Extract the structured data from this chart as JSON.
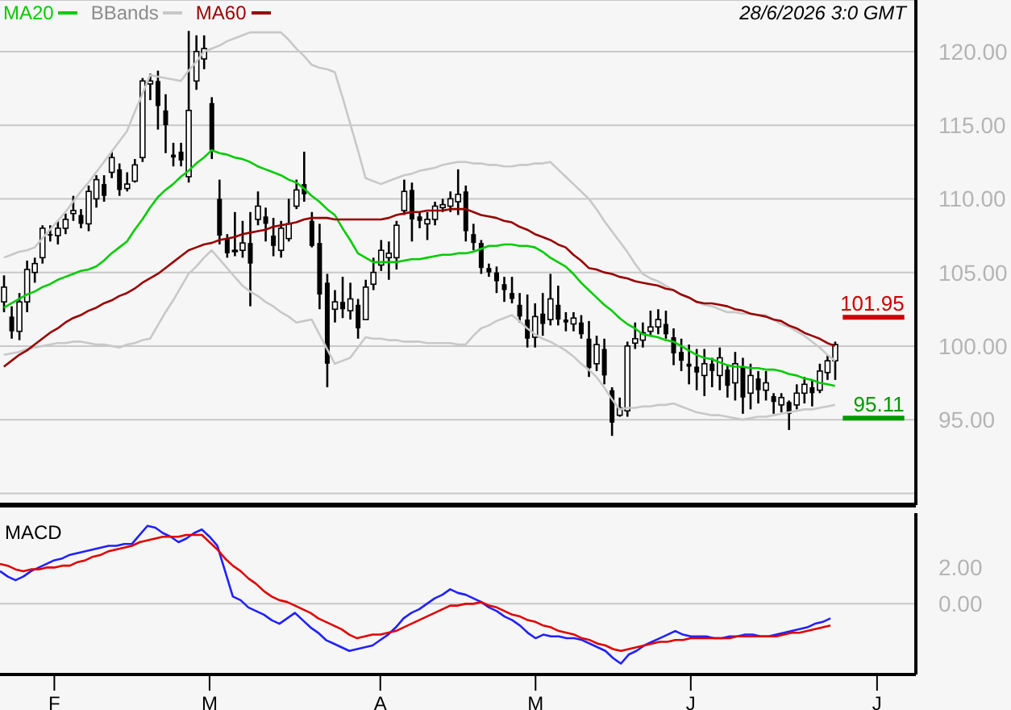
{
  "chart_data": [
    {
      "type": "candlestick",
      "annotations": [
        "28/6/2026 3:0 GMT"
      ],
      "categories": [
        null,
        null,
        null,
        null,
        null,
        null,
        null,
        null,
        null,
        null,
        null,
        null,
        null,
        null,
        null,
        null,
        null,
        null,
        null,
        null,
        null,
        null,
        null,
        null,
        null,
        null,
        null,
        null,
        null,
        null,
        null,
        null,
        null,
        null,
        null,
        null,
        null,
        null,
        null,
        null,
        null,
        null,
        null,
        null,
        null,
        null,
        null,
        null,
        null,
        null,
        null,
        null,
        null,
        null,
        null,
        null,
        null,
        null,
        null,
        null,
        null,
        null,
        null,
        null,
        null,
        null,
        null,
        null,
        null,
        null,
        null,
        null,
        null,
        null,
        null,
        null,
        null,
        null,
        null,
        null,
        null,
        null,
        null,
        null,
        null,
        null,
        null,
        null,
        null,
        null,
        null,
        null,
        null,
        null,
        null,
        null,
        null,
        null,
        null,
        null,
        null,
        null,
        null,
        null,
        null,
        null,
        null,
        null,
        null,
        null,
        null,
        null,
        null,
        null,
        null,
        null,
        null,
        null,
        null
      ],
      "ohlc": [
        [
          103.0,
          104.8,
          102.3,
          104.0
        ],
        [
          102.0,
          102.7,
          100.5,
          101.0
        ],
        [
          101.0,
          103.6,
          100.4,
          103.0
        ],
        [
          103.0,
          105.8,
          102.3,
          105.2
        ],
        [
          105.0,
          106.0,
          104.3,
          105.6
        ],
        [
          106.0,
          108.2,
          105.6,
          108.0
        ],
        [
          107.6,
          108.2,
          107.1,
          107.5
        ],
        [
          107.5,
          108.5,
          106.9,
          108.0
        ],
        [
          108.0,
          109.0,
          107.6,
          108.6
        ],
        [
          109.0,
          110.2,
          108.5,
          109.2
        ],
        [
          108.9,
          109.3,
          108.0,
          108.3
        ],
        [
          108.3,
          110.9,
          107.8,
          110.5
        ],
        [
          110.0,
          111.6,
          109.4,
          111.3
        ],
        [
          111.0,
          111.6,
          109.8,
          110.2
        ],
        [
          111.8,
          113.2,
          111.4,
          112.8
        ],
        [
          112.0,
          112.4,
          110.2,
          110.6
        ],
        [
          110.7,
          111.8,
          110.5,
          111.0
        ],
        [
          111.2,
          112.7,
          111.1,
          112.3
        ],
        [
          112.8,
          118.2,
          112.5,
          118.0
        ],
        [
          117.8,
          118.5,
          116.7,
          118.0
        ],
        [
          118.0,
          118.7,
          114.7,
          116.3
        ],
        [
          116.0,
          117.1,
          113.1,
          115.0
        ],
        [
          113.0,
          113.8,
          112.2,
          112.8
        ],
        [
          113.2,
          113.8,
          112.2,
          112.6
        ],
        [
          111.5,
          121.4,
          111.1,
          116.0
        ],
        [
          118.0,
          121.1,
          117.4,
          120.0
        ],
        [
          119.5,
          121.1,
          118.8,
          120.2
        ],
        [
          116.5,
          116.9,
          112.7,
          113.3
        ],
        [
          110.0,
          111.3,
          106.9,
          107.5
        ],
        [
          107.3,
          107.6,
          106.0,
          106.3
        ],
        [
          106.5,
          109.1,
          106.1,
          106.5
        ],
        [
          106.5,
          108.5,
          106.0,
          107.0
        ],
        [
          107.0,
          109.1,
          102.7,
          105.6
        ],
        [
          108.6,
          110.5,
          108.2,
          109.5
        ],
        [
          108.8,
          109.4,
          107.1,
          108.3
        ],
        [
          107.5,
          108.7,
          106.1,
          106.8
        ],
        [
          106.5,
          108.5,
          106.0,
          108.0
        ],
        [
          107.3,
          110.0,
          107.1,
          108.3
        ],
        [
          109.5,
          111.3,
          109.3,
          110.6
        ],
        [
          111.0,
          113.2,
          109.8,
          110.3
        ],
        [
          108.5,
          109.1,
          106.7,
          106.8
        ],
        [
          107.0,
          108.3,
          102.5,
          103.5
        ],
        [
          104.3,
          104.9,
          97.2,
          98.8
        ],
        [
          102.5,
          103.8,
          101.6,
          103.0
        ],
        [
          103.0,
          104.7,
          101.9,
          102.5
        ],
        [
          102.4,
          104.3,
          101.8,
          103.2
        ],
        [
          102.8,
          103.2,
          100.5,
          101.2
        ],
        [
          101.8,
          104.5,
          101.8,
          104.0
        ],
        [
          104.2,
          106.0,
          103.8,
          105.0
        ],
        [
          105.5,
          107.2,
          105.1,
          106.5
        ],
        [
          106.0,
          107.1,
          104.5,
          106.3
        ],
        [
          106.0,
          108.5,
          105.2,
          108.2
        ],
        [
          109.2,
          111.3,
          108.9,
          110.5
        ],
        [
          110.6,
          111.1,
          107.1,
          108.6
        ],
        [
          108.8,
          109.1,
          108.0,
          108.5
        ],
        [
          108.3,
          109.1,
          107.2,
          108.6
        ],
        [
          108.6,
          109.8,
          108.2,
          109.5
        ],
        [
          109.4,
          110.0,
          109.1,
          109.6
        ],
        [
          109.5,
          110.5,
          109.1,
          110.0
        ],
        [
          109.8,
          112.0,
          108.9,
          110.3
        ],
        [
          110.5,
          110.9,
          107.1,
          107.8
        ],
        [
          107.6,
          108.3,
          106.5,
          107.0
        ],
        [
          107.0,
          107.2,
          104.9,
          105.3
        ],
        [
          105.3,
          105.6,
          104.7,
          105.0
        ],
        [
          105.0,
          105.4,
          103.6,
          104.4
        ],
        [
          104.2,
          104.7,
          103.0,
          103.8
        ],
        [
          103.6,
          104.7,
          102.9,
          103.2
        ],
        [
          102.8,
          103.6,
          101.6,
          102.0
        ],
        [
          101.8,
          103.5,
          99.9,
          100.5
        ],
        [
          100.6,
          102.9,
          99.9,
          102.0
        ],
        [
          102.2,
          103.6,
          100.7,
          101.5
        ],
        [
          101.8,
          104.9,
          101.4,
          103.2
        ],
        [
          102.8,
          104.1,
          101.4,
          101.8
        ],
        [
          101.8,
          102.3,
          101.0,
          101.6
        ],
        [
          101.5,
          102.3,
          101.0,
          101.9
        ],
        [
          101.6,
          102.1,
          100.5,
          100.8
        ],
        [
          100.5,
          101.7,
          97.9,
          98.5
        ],
        [
          98.8,
          100.7,
          98.3,
          100.1
        ],
        [
          99.8,
          100.5,
          97.4,
          98.0
        ],
        [
          97.0,
          97.2,
          93.9,
          94.8
        ],
        [
          95.3,
          96.5,
          95.2,
          95.8
        ],
        [
          95.6,
          100.3,
          95.2,
          100.0
        ],
        [
          100.2,
          101.6,
          99.8,
          100.5
        ],
        [
          100.4,
          101.6,
          99.9,
          100.9
        ],
        [
          101.0,
          102.4,
          100.7,
          101.3
        ],
        [
          101.3,
          102.5,
          100.8,
          101.8
        ],
        [
          101.5,
          102.4,
          100.5,
          100.8
        ],
        [
          100.6,
          101.2,
          98.7,
          99.5
        ],
        [
          99.6,
          100.5,
          98.3,
          99.0
        ],
        [
          98.8,
          100.1,
          97.4,
          98.6
        ],
        [
          98.6,
          99.8,
          97.0,
          98.2
        ],
        [
          98.0,
          99.8,
          96.6,
          98.8
        ],
        [
          98.8,
          99.2,
          97.2,
          98.3
        ],
        [
          98.0,
          99.9,
          97.0,
          99.2
        ],
        [
          98.4,
          98.7,
          96.5,
          97.3
        ],
        [
          97.5,
          99.6,
          96.3,
          98.8
        ],
        [
          98.6,
          99.2,
          95.4,
          96.5
        ],
        [
          96.8,
          98.8,
          95.7,
          98.0
        ],
        [
          97.8,
          98.3,
          96.1,
          97.0
        ],
        [
          97.0,
          98.3,
          96.3,
          97.5
        ],
        [
          96.6,
          96.8,
          95.4,
          96.2
        ],
        [
          96.0,
          96.8,
          95.5,
          96.5
        ],
        [
          96.2,
          96.3,
          94.3,
          95.4
        ],
        [
          96.0,
          97.4,
          95.7,
          96.8
        ],
        [
          96.8,
          97.9,
          96.1,
          97.4
        ],
        [
          97.2,
          97.7,
          95.9,
          96.8
        ],
        [
          97.0,
          98.8,
          96.8,
          98.3
        ],
        [
          98.2,
          99.4,
          97.7,
          99.0
        ],
        [
          99.0,
          100.3,
          97.7,
          100.1
        ],
        null,
        null,
        null,
        null,
        null,
        null,
        null,
        null,
        null,
        null
      ],
      "series": [
        {
          "type": "line",
          "name": "MA20",
          "color": "#00cc00",
          "values": [
            102.6,
            102.9,
            103.2,
            103.5,
            103.7,
            104.0,
            104.2,
            104.5,
            104.7,
            104.9,
            105.1,
            105.2,
            105.4,
            105.8,
            106.3,
            106.7,
            107.1,
            107.9,
            108.6,
            109.4,
            110.1,
            110.6,
            111.0,
            111.5,
            111.9,
            112.4,
            112.8,
            113.3,
            113.1,
            113.0,
            112.8,
            112.7,
            112.5,
            112.2,
            112.0,
            111.8,
            111.6,
            111.3,
            111.1,
            110.7,
            110.2,
            109.8,
            109.3,
            108.9,
            108.0,
            107.2,
            106.3,
            106.0,
            105.7,
            105.7,
            105.7,
            105.7,
            105.8,
            105.9,
            105.9,
            106.0,
            106.1,
            106.2,
            106.2,
            106.3,
            106.3,
            106.4,
            106.6,
            106.8,
            106.8,
            106.9,
            106.9,
            106.8,
            106.8,
            106.7,
            106.4,
            106.0,
            105.7,
            105.4,
            104.9,
            104.3,
            103.8,
            103.3,
            102.8,
            102.4,
            101.9,
            101.5,
            101.2,
            100.8,
            100.7,
            100.6,
            100.4,
            100.3,
            100.0,
            99.7,
            99.4,
            99.2,
            99.1,
            98.9,
            98.7,
            98.6,
            98.6,
            98.5,
            98.5,
            98.4,
            98.4,
            98.3,
            98.1,
            98.0,
            97.8,
            97.7,
            97.5,
            97.4,
            97.3,
            null,
            null,
            null,
            null,
            null,
            null,
            null,
            null,
            null,
            null
          ]
        },
        {
          "type": "line",
          "name": "BBands",
          "color": "#c8c8c8",
          "values": [
            106.0,
            106.2,
            106.4,
            106.5,
            106.7,
            107.3,
            107.9,
            108.5,
            109.1,
            109.8,
            110.5,
            111.1,
            111.8,
            112.5,
            113.2,
            113.9,
            114.6,
            115.9,
            117.1,
            118.4,
            118.3,
            118.2,
            118.1,
            118.0,
            118.7,
            119.3,
            120.0,
            120.2,
            120.4,
            120.7,
            120.9,
            121.1,
            121.3,
            121.3,
            121.3,
            121.3,
            121.3,
            120.8,
            120.2,
            119.7,
            119.1,
            118.9,
            118.8,
            118.6,
            116.9,
            115.1,
            113.3,
            111.4,
            111.2,
            111.0,
            111.2,
            111.4,
            111.6,
            111.7,
            111.9,
            112.0,
            112.1,
            112.3,
            112.4,
            112.5,
            112.5,
            112.4,
            112.4,
            112.3,
            112.3,
            112.2,
            112.2,
            112.3,
            112.3,
            112.4,
            112.4,
            112.5,
            112.0,
            111.5,
            111.0,
            110.5,
            110.0,
            109.3,
            108.5,
            107.8,
            107.1,
            106.4,
            105.6,
            104.9,
            104.6,
            104.4,
            104.1,
            103.8,
            103.5,
            103.3,
            103.0,
            102.8,
            102.7,
            102.5,
            102.3,
            102.3,
            102.2,
            102.2,
            102.1,
            102.1,
            101.8,
            101.5,
            101.3,
            101.0,
            100.7,
            100.3,
            99.9,
            99.4,
            99.0,
            null,
            null,
            null,
            null,
            null,
            null,
            null,
            null,
            null,
            null
          ]
        },
        {
          "type": "line",
          "color": "#c8c8c8",
          "values": [
            99.4,
            99.5,
            99.6,
            99.8,
            99.9,
            100.0,
            100.1,
            100.2,
            100.2,
            100.3,
            100.3,
            100.2,
            100.1,
            100.1,
            100.0,
            99.9,
            100.1,
            100.2,
            100.4,
            100.5,
            101.4,
            102.3,
            103.1,
            104.0,
            104.9,
            105.4,
            106.0,
            106.5,
            105.9,
            105.3,
            104.7,
            104.1,
            103.7,
            103.4,
            103.0,
            102.7,
            102.3,
            102.0,
            101.6,
            101.7,
            101.8,
            100.8,
            99.8,
            98.8,
            99.0,
            99.2,
            99.9,
            100.6,
            100.5,
            100.5,
            100.4,
            100.4,
            100.3,
            100.3,
            100.3,
            100.2,
            100.2,
            100.2,
            100.2,
            100.1,
            100.1,
            100.7,
            101.2,
            101.4,
            101.7,
            101.9,
            102.1,
            101.7,
            101.2,
            100.8,
            100.5,
            100.3,
            100.0,
            99.7,
            99.3,
            98.8,
            98.4,
            97.9,
            97.2,
            96.4,
            95.7,
            95.8,
            95.8,
            95.9,
            95.9,
            96.0,
            96.0,
            96.1,
            95.9,
            95.7,
            95.5,
            95.4,
            95.3,
            95.3,
            95.2,
            95.1,
            95.0,
            95.1,
            95.2,
            95.2,
            95.3,
            95.4,
            95.5,
            95.6,
            95.7,
            95.7,
            95.8,
            95.9,
            96.0,
            null,
            null,
            null,
            null,
            null,
            null,
            null,
            null,
            null,
            null
          ]
        },
        {
          "type": "line",
          "name": "MA60",
          "color": "#990000",
          "values": [
            98.6,
            99.0,
            99.4,
            99.7,
            100.1,
            100.5,
            100.9,
            101.2,
            101.6,
            101.9,
            102.1,
            102.4,
            102.6,
            102.9,
            103.1,
            103.4,
            103.6,
            103.9,
            104.3,
            104.6,
            104.9,
            105.3,
            105.7,
            106.1,
            106.5,
            106.7,
            106.9,
            107.0,
            107.2,
            107.3,
            107.4,
            107.6,
            107.7,
            107.8,
            107.9,
            108.1,
            108.2,
            108.3,
            108.4,
            108.6,
            108.7,
            108.7,
            108.7,
            108.6,
            108.6,
            108.6,
            108.6,
            108.6,
            108.6,
            108.6,
            108.7,
            108.9,
            109.0,
            109.1,
            109.1,
            109.2,
            109.2,
            109.2,
            109.3,
            109.3,
            109.3,
            109.1,
            108.9,
            108.8,
            108.7,
            108.5,
            108.4,
            108.1,
            107.9,
            107.6,
            107.4,
            107.2,
            106.9,
            106.7,
            106.2,
            105.8,
            105.3,
            105.2,
            105.0,
            104.9,
            104.7,
            104.6,
            104.4,
            104.3,
            104.2,
            104.1,
            103.9,
            103.8,
            103.5,
            103.3,
            103.0,
            102.9,
            102.9,
            102.8,
            102.7,
            102.5,
            102.4,
            102.2,
            102.1,
            102.0,
            101.8,
            101.7,
            101.4,
            101.2,
            100.9,
            100.7,
            100.5,
            100.2,
            100.0,
            null,
            null,
            null,
            null,
            null,
            null,
            null,
            null,
            null,
            null
          ]
        }
      ],
      "ylim": [
        89.2,
        123.5
      ],
      "yticks": [
        {
          "value": 90,
          "label": null
        },
        {
          "value": 95,
          "label": "95.00"
        },
        {
          "value": 100,
          "label": "100.00"
        },
        {
          "value": 105,
          "label": "105.00"
        },
        {
          "value": 110,
          "label": "110.00"
        },
        {
          "value": 115,
          "label": "115.00"
        },
        {
          "value": 120,
          "label": "120.00"
        }
      ],
      "ref_lines": [
        {
          "axis": "y",
          "value": 101.95,
          "label": "101.95",
          "color": "#cc0000"
        },
        {
          "axis": "y",
          "value": 95.11,
          "label": "95.11",
          "color": "#009900"
        }
      ],
      "grid": "y",
      "legend": "top left",
      "marker": "none"
    },
    {
      "type": "line",
      "title": "MACD",
      "categories": [
        null,
        null,
        null,
        null,
        null,
        null,
        null,
        "F",
        null,
        null,
        null,
        null,
        null,
        null,
        null,
        null,
        null,
        null,
        null,
        null,
        null,
        null,
        null,
        null,
        null,
        null,
        null,
        "M",
        null,
        null,
        null,
        null,
        null,
        null,
        null,
        null,
        null,
        null,
        null,
        null,
        null,
        null,
        null,
        null,
        null,
        null,
        null,
        null,
        null,
        "A",
        null,
        null,
        null,
        null,
        null,
        null,
        null,
        null,
        null,
        null,
        null,
        null,
        null,
        null,
        null,
        null,
        null,
        null,
        null,
        "M",
        null,
        null,
        null,
        null,
        null,
        null,
        null,
        null,
        null,
        null,
        null,
        null,
        null,
        null,
        null,
        null,
        null,
        null,
        null,
        "J",
        null,
        null,
        null,
        null,
        null,
        null,
        null,
        null,
        null,
        null,
        null,
        null,
        null,
        null,
        null,
        null,
        null,
        null,
        null,
        null,
        null,
        null,
        null,
        "J",
        null,
        null,
        null,
        null,
        null
      ],
      "series": [
        {
          "type": "line",
          "color": "#2020ff",
          "values": [
            1.8,
            1.5,
            1.3,
            1.5,
            1.8,
            2.0,
            2.2,
            2.4,
            2.5,
            2.7,
            2.8,
            2.9,
            3.0,
            3.1,
            3.2,
            3.2,
            3.3,
            3.3,
            3.8,
            4.3,
            4.2,
            3.9,
            3.7,
            3.4,
            3.6,
            3.9,
            4.1,
            3.7,
            3.2,
            1.8,
            0.4,
            0.2,
            -0.2,
            -0.4,
            -0.6,
            -0.9,
            -1.1,
            -0.8,
            -0.5,
            -0.9,
            -1.3,
            -1.6,
            -2.0,
            -2.2,
            -2.4,
            -2.6,
            -2.5,
            -2.4,
            -2.3,
            -2.0,
            -1.7,
            -1.3,
            -0.8,
            -0.5,
            -0.3,
            0.0,
            0.3,
            0.5,
            0.8,
            0.6,
            0.5,
            0.3,
            0.1,
            -0.2,
            -0.4,
            -0.7,
            -0.9,
            -1.2,
            -1.6,
            -1.9,
            -1.7,
            -1.8,
            -1.8,
            -1.9,
            -1.9,
            -2.0,
            -2.2,
            -2.4,
            -2.6,
            -3.0,
            -3.3,
            -2.8,
            -2.6,
            -2.3,
            -2.1,
            -1.9,
            -1.7,
            -1.5,
            -1.7,
            -1.8,
            -1.8,
            -1.8,
            -1.9,
            -1.9,
            -1.8,
            -1.8,
            -1.7,
            -1.7,
            -1.8,
            -1.8,
            -1.7,
            -1.6,
            -1.5,
            -1.4,
            -1.3,
            -1.1,
            -1.0,
            -0.8,
            null,
            null,
            null,
            null,
            null,
            null,
            null,
            null,
            null,
            null,
            null
          ]
        },
        {
          "type": "line",
          "color": "#e00000",
          "values": [
            2.2,
            2.1,
            1.9,
            1.8,
            1.9,
            1.9,
            2.0,
            2.0,
            2.1,
            2.1,
            2.3,
            2.4,
            2.6,
            2.7,
            2.9,
            3.0,
            3.1,
            3.2,
            3.4,
            3.5,
            3.6,
            3.7,
            3.7,
            3.7,
            3.8,
            3.8,
            3.8,
            3.4,
            3.0,
            2.5,
            2.1,
            1.8,
            1.4,
            1.1,
            0.7,
            0.4,
            0.2,
            0.1,
            -0.1,
            -0.3,
            -0.5,
            -0.8,
            -1.0,
            -1.2,
            -1.4,
            -1.7,
            -1.9,
            -1.8,
            -1.7,
            -1.7,
            -1.6,
            -1.5,
            -1.3,
            -1.1,
            -0.9,
            -0.7,
            -0.5,
            -0.3,
            -0.1,
            -0.1,
            0.0,
            0.0,
            0.1,
            -0.1,
            -0.2,
            -0.4,
            -0.6,
            -0.7,
            -0.9,
            -1.0,
            -1.2,
            -1.3,
            -1.5,
            -1.6,
            -1.7,
            -1.9,
            -2.0,
            -2.2,
            -2.3,
            -2.5,
            -2.6,
            -2.5,
            -2.4,
            -2.3,
            -2.2,
            -2.1,
            -2.1,
            -2.0,
            -2.0,
            -1.9,
            -1.9,
            -1.9,
            -1.9,
            -1.9,
            -1.9,
            -1.8,
            -1.8,
            -1.8,
            -1.8,
            -1.8,
            -1.8,
            -1.7,
            -1.6,
            -1.6,
            -1.5,
            -1.4,
            -1.3,
            -1.2,
            null,
            null,
            null,
            null,
            null,
            null,
            null,
            null,
            null,
            null,
            null
          ]
        }
      ],
      "ylim": [
        -3.9,
        5.0
      ],
      "yticks": [
        {
          "value": 0,
          "label": "0.00"
        },
        {
          "value": 2,
          "label": "2.00"
        }
      ],
      "ref_lines": [
        {
          "axis": "y",
          "value": 0,
          "color": "#c8c8c8"
        }
      ],
      "marker": "none"
    }
  ]
}
